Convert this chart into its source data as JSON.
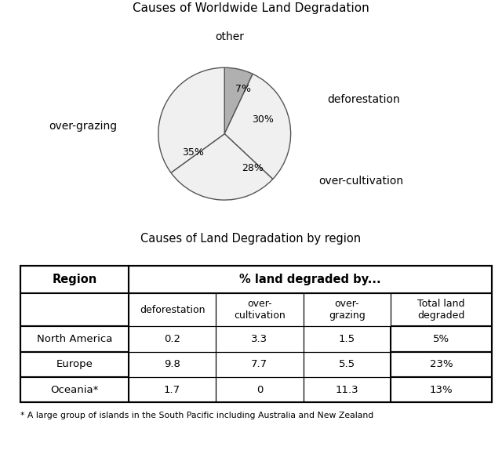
{
  "pie_title": "Causes of Worldwide Land Degradation",
  "pie_labels": [
    "other",
    "deforestation",
    "over-cultivation",
    "over-grazing"
  ],
  "pie_values": [
    7,
    30,
    28,
    35
  ],
  "pie_wedge_colors": [
    "#b0b0b0",
    "#f0f0f0",
    "#f0f0f0",
    "#f0f0f0"
  ],
  "table_title": "Causes of Land Degradation by region",
  "col_header_1": "Region",
  "col_header_2": "% land degraded by...",
  "sub_headers": [
    "deforestation",
    "over-\ncultivation",
    "over-\ngrazing",
    "Total land\ndegraded"
  ],
  "rows": [
    [
      "North America",
      "0.2",
      "3.3",
      "1.5",
      "5%"
    ],
    [
      "Europe",
      "9.8",
      "7.7",
      "5.5",
      "23%"
    ],
    [
      "Oceania*",
      "1.7",
      "0",
      "11.3",
      "13%"
    ]
  ],
  "footnote": "* A large group of islands in the South Pacific including Australia and New Zealand",
  "bg_color": "#ffffff",
  "text_color": "#000000",
  "pie_edge_color": "#555555",
  "label_other": "other",
  "label_deforestation": "deforestation",
  "label_over_cultivation": "over-cultivation",
  "label_over_grazing": "over-grazing",
  "pct_other": "7%",
  "pct_deforestation": "30%",
  "pct_over_cultivation": "28%",
  "pct_over_grazing": "35%"
}
